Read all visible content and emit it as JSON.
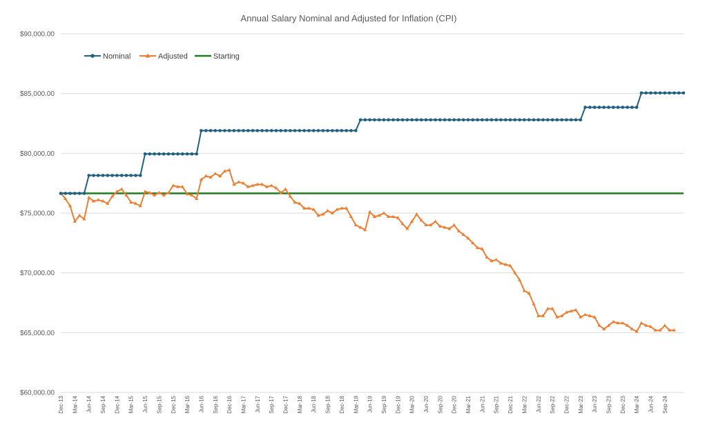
{
  "chart_data": {
    "type": "line",
    "title": "Annual Salary Nominal and Adjusted for Inflation (CPI)",
    "xlabel": "",
    "ylabel": "",
    "ylim": [
      60000,
      90000
    ],
    "y_ticks": [
      "$60,000.00",
      "$65,000.00",
      "$70,000.00",
      "$75,000.00",
      "$80,000.00",
      "$85,000.00",
      "$90,000.00"
    ],
    "grid": true,
    "legend_position": "top-left",
    "x_tick_labels": [
      "Dec-13",
      "Mar-14",
      "Jun-14",
      "Sep-14",
      "Dec-14",
      "Mar-15",
      "Jun-15",
      "Sep-15",
      "Dec-15",
      "Mar-16",
      "Jun-16",
      "Sep-16",
      "Dec-16",
      "Mar-17",
      "Jun-17",
      "Sep-17",
      "Dec-17",
      "Mar-18",
      "Jun-18",
      "Sep-18",
      "Dec-18",
      "Mar-19",
      "Jun-19",
      "Sep-19",
      "Dec-19",
      "Mar-20",
      "Jun-20",
      "Sep-20",
      "Dec-20",
      "Mar-21",
      "Jun-21",
      "Sep-21",
      "Dec-21",
      "Mar-22",
      "Jun-22",
      "Sep-22",
      "Dec-22",
      "Mar-23",
      "Jun-23",
      "Sep-23",
      "Dec-23",
      "Mar-24",
      "Jun-24",
      "Sep-24"
    ],
    "series": [
      {
        "name": "Nominal",
        "color": "#1f5f7f",
        "marker": "circle",
        "values": [
          76650,
          76650,
          76650,
          76650,
          76650,
          76650,
          78150,
          78150,
          78150,
          78150,
          78150,
          78150,
          78150,
          78150,
          78150,
          78150,
          78150,
          78150,
          79950,
          79950,
          79950,
          79950,
          79950,
          79950,
          79950,
          79950,
          79950,
          79950,
          79950,
          79950,
          81900,
          81900,
          81900,
          81900,
          81900,
          81900,
          81900,
          81900,
          81900,
          81900,
          81900,
          81900,
          81900,
          81900,
          81900,
          81900,
          81900,
          81900,
          81900,
          81900,
          81900,
          81900,
          81900,
          81900,
          81900,
          81900,
          81900,
          81900,
          81900,
          81900,
          81900,
          81900,
          81900,
          81900,
          82800,
          82800,
          82800,
          82800,
          82800,
          82800,
          82800,
          82800,
          82800,
          82800,
          82800,
          82800,
          82800,
          82800,
          82800,
          82800,
          82800,
          82800,
          82800,
          82800,
          82800,
          82800,
          82800,
          82800,
          82800,
          82800,
          82800,
          82800,
          82800,
          82800,
          82800,
          82800,
          82800,
          82800,
          82800,
          82800,
          82800,
          82800,
          82800,
          82800,
          82800,
          82800,
          82800,
          82800,
          82800,
          82800,
          82800,
          82800,
          83850,
          83850,
          83850,
          83850,
          83850,
          83850,
          83850,
          83850,
          83850,
          83850,
          83850,
          83850,
          85050,
          85050,
          85050,
          85050,
          85050,
          85050,
          85050,
          85050,
          85050,
          85050
        ]
      },
      {
        "name": "Adjusted",
        "color": "#ed7d31",
        "marker": "triangle",
        "values": [
          76650,
          76200,
          75600,
          74300,
          74800,
          74500,
          76300,
          76000,
          76100,
          76000,
          75800,
          76400,
          76800,
          77000,
          76500,
          75900,
          75800,
          75600,
          76800,
          76700,
          76500,
          76700,
          76500,
          76700,
          77300,
          77200,
          77200,
          76600,
          76500,
          76200,
          77800,
          78100,
          78000,
          78300,
          78100,
          78500,
          78600,
          77400,
          77600,
          77500,
          77200,
          77300,
          77400,
          77400,
          77200,
          77300,
          77100,
          76700,
          77000,
          76400,
          75900,
          75800,
          75400,
          75400,
          75300,
          74800,
          74900,
          75200,
          75000,
          75300,
          75400,
          75400,
          74700,
          74000,
          73800,
          73600,
          75100,
          74700,
          74800,
          75000,
          74700,
          74700,
          74600,
          74100,
          73700,
          74300,
          74900,
          74400,
          74000,
          74000,
          74300,
          73900,
          73800,
          73700,
          74000,
          73500,
          73200,
          72900,
          72500,
          72100,
          72000,
          71300,
          71000,
          71100,
          70800,
          70700,
          70600,
          70000,
          69400,
          68500,
          68300,
          67400,
          66400,
          66400,
          67000,
          67000,
          66300,
          66400,
          66700,
          66800,
          66900,
          66300,
          66500,
          66400,
          66300,
          65600,
          65300,
          65600,
          65900,
          65800,
          65800,
          65600,
          65300,
          65100,
          65800,
          65600,
          65500,
          65200,
          65200,
          65600,
          65200,
          65200
        ]
      },
      {
        "name": "Starting",
        "color": "#1e7b1e",
        "marker": "none",
        "values": [
          76650,
          76650
        ]
      }
    ]
  }
}
